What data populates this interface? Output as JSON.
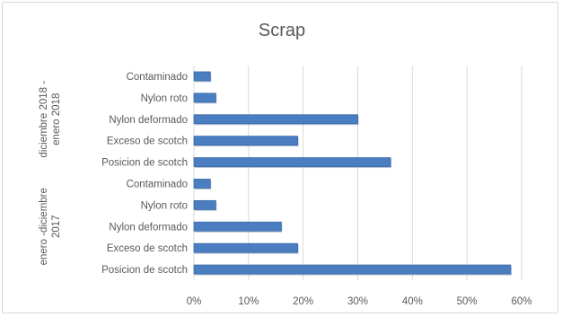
{
  "chart_data": {
    "type": "bar",
    "orientation": "horizontal",
    "title": "Scrap",
    "xlabel": "",
    "ylabel": "",
    "xlim": [
      0,
      0.6
    ],
    "x_ticks": [
      "0%",
      "10%",
      "20%",
      "30%",
      "40%",
      "50%",
      "60%"
    ],
    "grid": true,
    "legend": "none",
    "bar_color": "#4a7ec1",
    "groups": [
      {
        "label": "diciembre 2018 - enero 2018",
        "categories": [
          "Contaminado",
          "Nylon roto",
          "Nylon deformado",
          "Exceso de scotch",
          "Posicion de scotch"
        ],
        "values": [
          0.03,
          0.04,
          0.3,
          0.19,
          0.36
        ]
      },
      {
        "label": "enero -diciembre 2017",
        "categories": [
          "Contaminado",
          "Nylon roto",
          "Nylon deformado",
          "Exceso de scotch",
          "Posicion de scotch"
        ],
        "values": [
          0.03,
          0.04,
          0.16,
          0.19,
          0.58
        ]
      }
    ]
  }
}
